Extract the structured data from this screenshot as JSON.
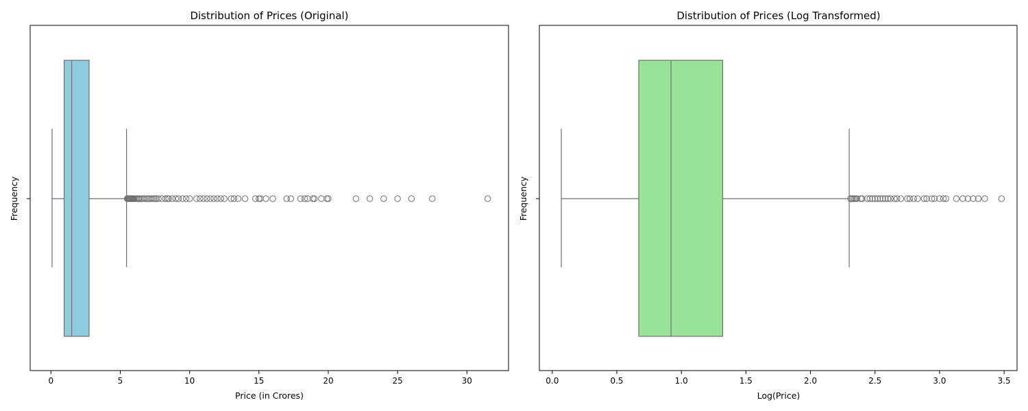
{
  "chart_data": [
    {
      "type": "boxplot",
      "orientation": "horizontal",
      "title": "Distribution of Prices (Original)",
      "xlabel": "Price (in Crores)",
      "ylabel": "Frequency",
      "xlim": [
        -1.5,
        33.0
      ],
      "xticks": [
        0,
        5,
        10,
        15,
        20,
        25,
        30
      ],
      "xtick_labels": [
        "0",
        "5",
        "10",
        "15",
        "20",
        "25",
        "30"
      ],
      "box_color": "#91cbe0",
      "line_color": "#6e6e6e",
      "stats": {
        "whisker_low": 0.08,
        "q1": 0.95,
        "median": 1.5,
        "q3": 2.75,
        "whisker_high": 5.45
      },
      "outliers": [
        5.5,
        5.55,
        5.6,
        5.65,
        5.7,
        5.75,
        5.8,
        5.85,
        5.9,
        5.95,
        6.0,
        6.1,
        6.2,
        6.3,
        6.4,
        6.5,
        6.6,
        6.75,
        6.9,
        7.0,
        7.1,
        7.25,
        7.4,
        7.5,
        7.6,
        7.75,
        8.0,
        8.25,
        8.4,
        8.5,
        8.75,
        9.0,
        9.2,
        9.5,
        9.75,
        10.0,
        10.5,
        10.75,
        11.0,
        11.25,
        11.5,
        11.75,
        12.0,
        12.25,
        12.5,
        13.0,
        13.2,
        13.5,
        14.0,
        14.75,
        15.0,
        15.1,
        15.5,
        16.0,
        17.0,
        17.3,
        18.0,
        18.3,
        18.5,
        18.9,
        19.0,
        19.5,
        19.9,
        20.0,
        22.0,
        23.0,
        24.0,
        25.0,
        26.0,
        27.5,
        31.5
      ]
    },
    {
      "type": "boxplot",
      "orientation": "horizontal",
      "title": "Distribution of Prices (Log Transformed)",
      "xlabel": "Log(Price)",
      "ylabel": "Frequency",
      "xlim": [
        -0.1,
        3.6
      ],
      "xticks": [
        0.0,
        0.5,
        1.0,
        1.5,
        2.0,
        2.5,
        3.0,
        3.5
      ],
      "xtick_labels": [
        "0.0",
        "0.5",
        "1.0",
        "1.5",
        "2.0",
        "2.5",
        "3.0",
        "3.5"
      ],
      "box_color": "#99e39a",
      "line_color": "#6e6e6e",
      "stats": {
        "whisker_low": 0.07,
        "q1": 0.67,
        "median": 0.92,
        "q3": 1.32,
        "whisker_high": 2.3
      },
      "outliers": [
        2.31,
        2.32,
        2.33,
        2.34,
        2.35,
        2.36,
        2.39,
        2.4,
        2.44,
        2.46,
        2.48,
        2.5,
        2.52,
        2.54,
        2.56,
        2.58,
        2.6,
        2.62,
        2.65,
        2.67,
        2.7,
        2.75,
        2.77,
        2.8,
        2.83,
        2.88,
        2.9,
        2.94,
        2.96,
        3.0,
        3.03,
        3.05,
        3.13,
        3.18,
        3.22,
        3.26,
        3.3,
        3.35,
        3.48
      ]
    }
  ]
}
